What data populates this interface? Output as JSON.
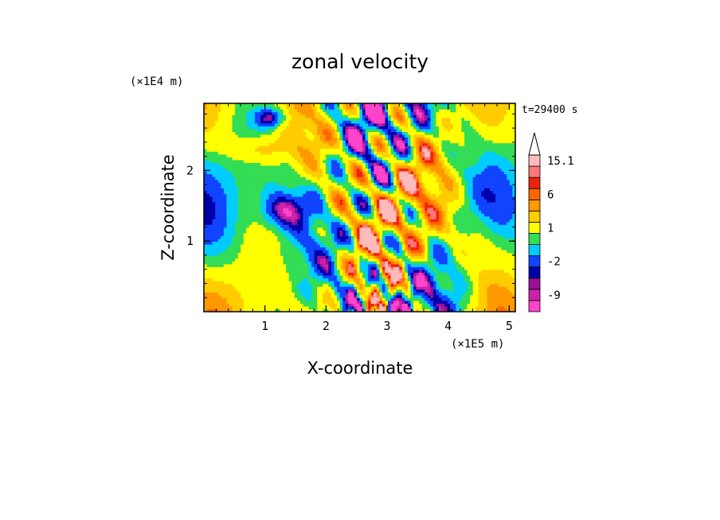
{
  "chart_data": {
    "type": "heatmap",
    "title": "zonal velocity",
    "xlabel": "X-coordinate",
    "ylabel": "Z-coordinate",
    "x_unit": "(×1E5 m)",
    "y_unit": "(×1E4 m)",
    "time_label": "t=29400 s",
    "xlim": [
      0,
      5.1
    ],
    "ylim": [
      0,
      2.95
    ],
    "x_ticks": [
      {
        "value": 1,
        "label": "1"
      },
      {
        "value": 2,
        "label": "2"
      },
      {
        "value": 3,
        "label": "3"
      },
      {
        "value": 4,
        "label": "4"
      },
      {
        "value": 5,
        "label": "5"
      }
    ],
    "y_ticks": [
      {
        "value": 1,
        "label": "1"
      },
      {
        "value": 2,
        "label": "2"
      }
    ],
    "colorbar": {
      "levels": [
        {
          "color": "#ff44cc",
          "label": ""
        },
        {
          "color": "#cc22aa",
          "label": "-9"
        },
        {
          "color": "#991199",
          "label": ""
        },
        {
          "color": "#0000aa",
          "label": ""
        },
        {
          "color": "#1144ff",
          "label": "-2"
        },
        {
          "color": "#00ccff",
          "label": ""
        },
        {
          "color": "#33dd55",
          "label": ""
        },
        {
          "color": "#ffff00",
          "label": "1"
        },
        {
          "color": "#ffcc00",
          "label": ""
        },
        {
          "color": "#ff9900",
          "label": ""
        },
        {
          "color": "#ff6600",
          "label": "6"
        },
        {
          "color": "#ee2211",
          "label": ""
        },
        {
          "color": "#ff7777",
          "label": ""
        },
        {
          "color": "#ffbbbb",
          "label": "15.1"
        }
      ],
      "extend_top": "#ffffff"
    },
    "field_description_values": {
      "range_min": -12,
      "range_max": 15.1
    }
  }
}
